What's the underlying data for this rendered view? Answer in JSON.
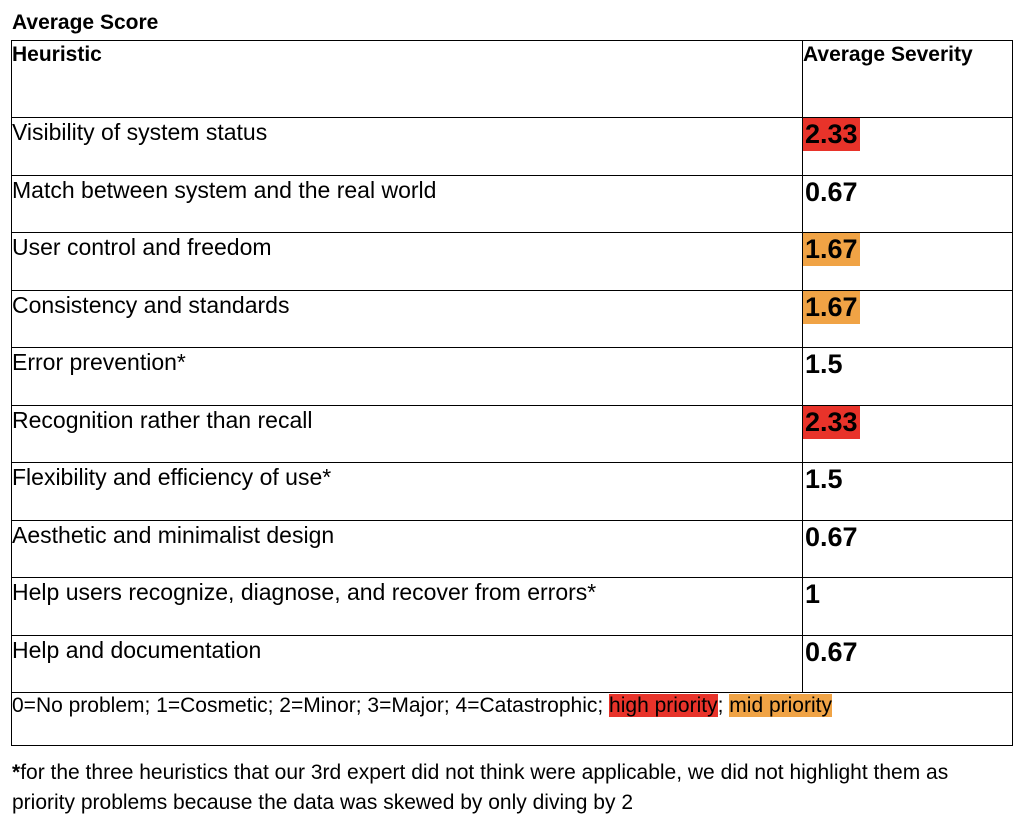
{
  "title": "Average Score",
  "table": {
    "headers": {
      "heuristic": "Heuristic",
      "severity": "Average Severity"
    },
    "rows": [
      {
        "heuristic": "Visibility of system status",
        "severity": "2.33",
        "priority": "high"
      },
      {
        "heuristic": "Match between system and the real world",
        "severity": "0.67",
        "priority": "none"
      },
      {
        "heuristic": "User control and freedom",
        "severity": "1.67",
        "priority": "mid"
      },
      {
        "heuristic": "Consistency and standards",
        "severity": "1.67",
        "priority": "mid"
      },
      {
        "heuristic": "Error prevention*",
        "severity": "1.5",
        "priority": "none"
      },
      {
        "heuristic": "Recognition rather than recall",
        "severity": "2.33",
        "priority": "high"
      },
      {
        "heuristic": "Flexibility and efficiency of use*",
        "severity": "1.5",
        "priority": "none"
      },
      {
        "heuristic": "Aesthetic and minimalist design",
        "severity": "0.67",
        "priority": "none"
      },
      {
        "heuristic": "Help users recognize, diagnose, and recover from errors*",
        "severity": "1",
        "priority": "none"
      },
      {
        "heuristic": "Help and documentation",
        "severity": "0.67",
        "priority": "none"
      }
    ],
    "legend": {
      "scale": "0=No problem; 1=Cosmetic; 2=Minor; 3=Major; 4=Catastrophic;",
      "high_label": "high priority",
      "separator": ";",
      "mid_label": "mid priority"
    }
  },
  "colors": {
    "high_priority": "#e8332a",
    "mid_priority": "#f0a345"
  },
  "footnote": {
    "star": "*",
    "text": "for the three heuristics that our 3rd expert did not think were applicable, we did not highlight them as priority problems because the data was skewed by only diving by 2"
  }
}
